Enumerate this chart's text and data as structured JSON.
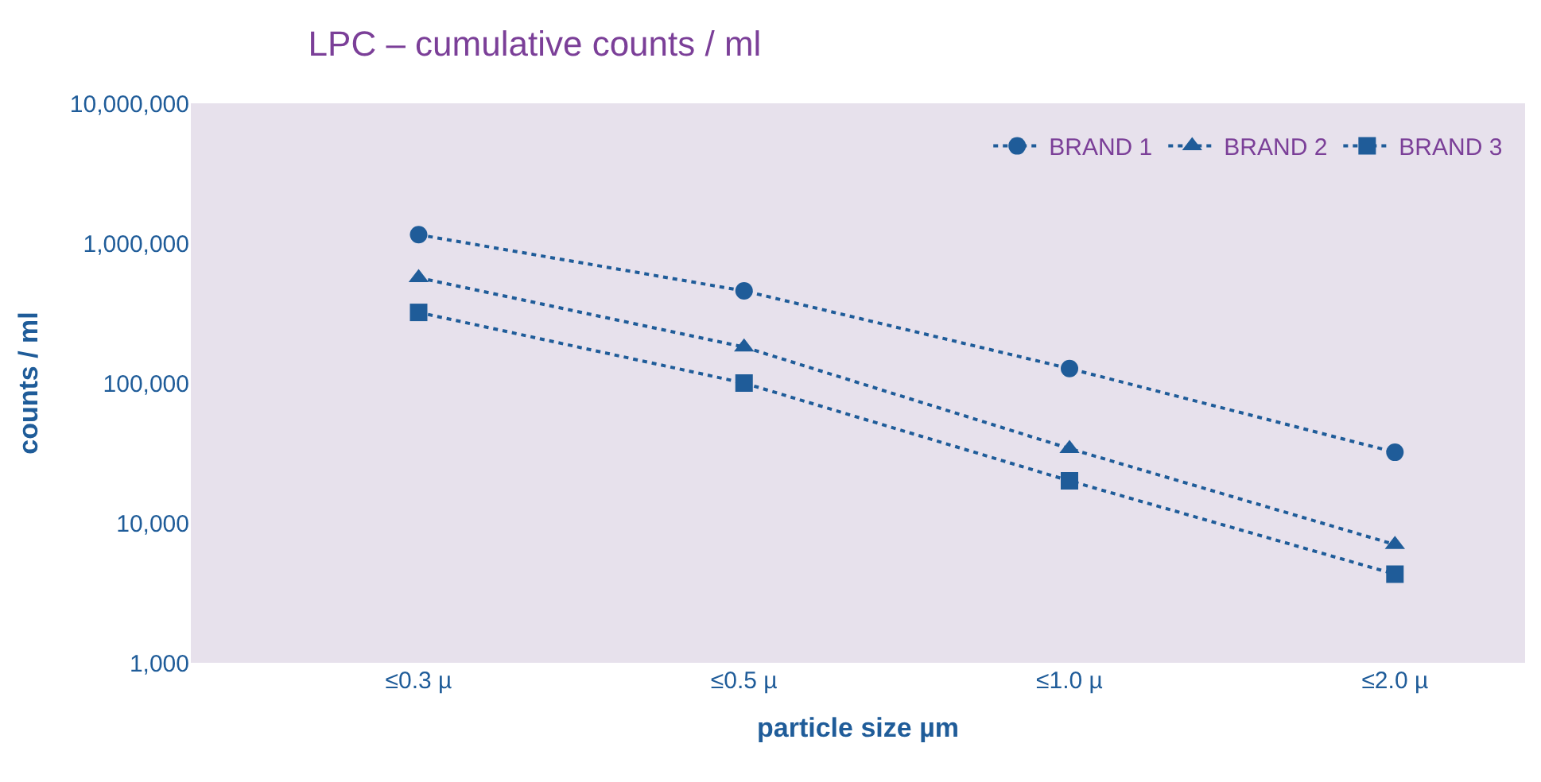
{
  "chart_data": {
    "type": "line",
    "title": "LPC – cumulative counts / ml",
    "xlabel": "particle size µm",
    "ylabel": "counts / ml",
    "categories": [
      "≤0.3 µ",
      "≤0.5 µ",
      "≤1.0 µ",
      "≤2.0 µ"
    ],
    "series": [
      {
        "name": "BRAND 1",
        "color": "#1f5c99",
        "marker": "circle",
        "values": [
          1150000,
          456000,
          127000,
          32000
        ]
      },
      {
        "name": "BRAND 2",
        "color": "#1f5c99",
        "marker": "triangle",
        "values": [
          566000,
          181000,
          34000,
          7000
        ]
      },
      {
        "name": "BRAND 3",
        "color": "#1f5c99",
        "marker": "square",
        "values": [
          320000,
          100000,
          20000,
          4300
        ]
      }
    ],
    "log": "y",
    "ylim": [
      1000,
      10000000
    ],
    "yticks": [
      {
        "value": 1000,
        "label": "1,000"
      },
      {
        "value": 10000,
        "label": "10,000"
      },
      {
        "value": 100000,
        "label": "100,000"
      },
      {
        "value": 1000000,
        "label": "1,000,000"
      },
      {
        "value": 10000000,
        "label": "10,000,000"
      }
    ],
    "grid": false,
    "legend": "top right",
    "line_style": "dotted"
  }
}
